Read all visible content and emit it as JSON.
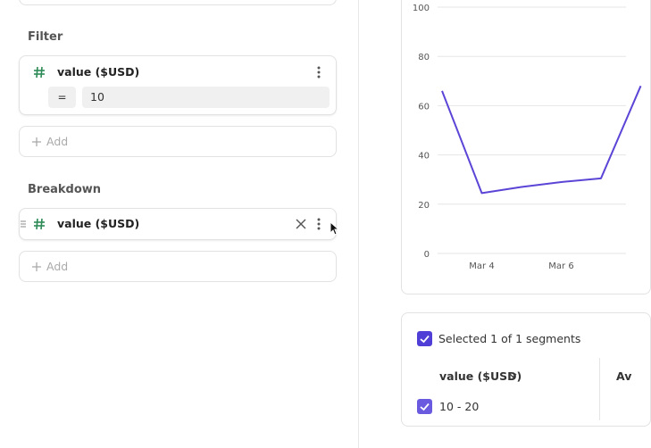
{
  "filter": {
    "title": "Filter",
    "field": "value ($USD)",
    "operator": "=",
    "value": 10,
    "add": "Add"
  },
  "breakdown": {
    "title": "Breakdown",
    "field": "value ($USD)",
    "add": "Add"
  },
  "chart_data": {
    "type": "line",
    "categories": [
      null,
      "Mar 4",
      null,
      "Mar 6",
      null,
      null
    ],
    "values": [
      66,
      24.5,
      27,
      29,
      30.5,
      68
    ],
    "color": "#5b45d6",
    "ylim": [
      0,
      100
    ],
    "yticks": [
      0,
      20,
      40,
      60,
      80,
      100
    ],
    "grid": true
  },
  "segments": {
    "summary": "Selected 1 of 1 segments",
    "column": "value ($USD)",
    "next_column": "Av",
    "rows": [
      "10 - 20"
    ]
  }
}
